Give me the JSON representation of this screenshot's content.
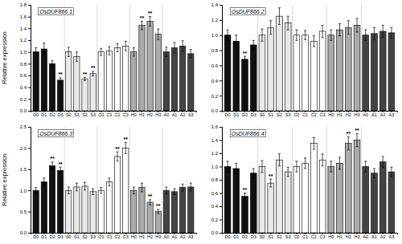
{
  "chart_data": [
    {
      "type": "bar",
      "title": "OsDUF866.1",
      "ylabel": "Relative expression",
      "categories": [
        "D0",
        "D1",
        "D2",
        "D3",
        "S0",
        "S1",
        "S2",
        "S3",
        "C0",
        "C1",
        "C2",
        "C3",
        "H0",
        "H1",
        "H2",
        "H3",
        "A0",
        "A1",
        "A2",
        "A3"
      ],
      "values": [
        1.0,
        1.05,
        0.8,
        0.52,
        1.0,
        0.92,
        0.54,
        0.63,
        1.0,
        1.02,
        1.07,
        1.1,
        1.0,
        1.45,
        1.52,
        1.3,
        1.0,
        1.07,
        1.1,
        0.97
      ],
      "errors": [
        0.07,
        0.1,
        0.05,
        0.04,
        0.08,
        0.08,
        0.03,
        0.04,
        0.06,
        0.07,
        0.07,
        0.08,
        0.07,
        0.07,
        0.08,
        0.09,
        0.08,
        0.09,
        0.09,
        0.07
      ],
      "colors": [
        "#111111",
        "#111111",
        "#111111",
        "#111111",
        "#e8e8e8",
        "#e8e8e8",
        "#e8e8e8",
        "#e8e8e8",
        "#ffffff",
        "#ffffff",
        "#ffffff",
        "#ffffff",
        "#aaaaaa",
        "#aaaaaa",
        "#aaaaaa",
        "#aaaaaa",
        "#444444",
        "#444444",
        "#444444",
        "#444444"
      ],
      "annotations": [
        {
          "category": "D3",
          "text": "**"
        },
        {
          "category": "S2",
          "text": "**"
        },
        {
          "category": "S3",
          "text": "**"
        },
        {
          "category": "H1",
          "text": "**"
        },
        {
          "category": "H2",
          "text": "**"
        }
      ],
      "ylim": [
        0,
        1.8
      ],
      "yticks": [
        {
          "value": 0,
          "label": "0.0"
        },
        0.2,
        0.4,
        0.6,
        0.8,
        {
          "value": 1.0,
          "label": "1.0"
        },
        1.2,
        1.4,
        1.6,
        1.8
      ],
      "grid": false
    },
    {
      "type": "bar",
      "title": "OsDUF866.2",
      "categories": [
        "D0",
        "D1",
        "D2",
        "D3",
        "S0",
        "S1",
        "S2",
        "S3",
        "C0",
        "C1",
        "C2",
        "C3",
        "H0",
        "H1",
        "H2",
        "H3",
        "A0",
        "A1",
        "A2",
        "A3"
      ],
      "values": [
        1.0,
        0.92,
        0.68,
        0.87,
        1.0,
        1.1,
        1.25,
        1.16,
        1.0,
        1.0,
        0.92,
        1.05,
        1.0,
        1.07,
        1.1,
        1.13,
        1.0,
        1.02,
        1.05,
        1.03
      ],
      "errors": [
        0.07,
        0.08,
        0.04,
        0.06,
        0.08,
        0.09,
        0.11,
        0.09,
        0.07,
        0.06,
        0.07,
        0.08,
        0.07,
        0.08,
        0.09,
        0.09,
        0.07,
        0.08,
        0.08,
        0.07
      ],
      "colors": [
        "#111111",
        "#111111",
        "#111111",
        "#111111",
        "#e8e8e8",
        "#e8e8e8",
        "#e8e8e8",
        "#e8e8e8",
        "#ffffff",
        "#ffffff",
        "#ffffff",
        "#ffffff",
        "#aaaaaa",
        "#aaaaaa",
        "#aaaaaa",
        "#aaaaaa",
        "#444444",
        "#444444",
        "#444444",
        "#444444"
      ],
      "annotations": [
        {
          "category": "D2",
          "text": "**"
        }
      ],
      "ylim": [
        0,
        1.4
      ],
      "yticks": [
        {
          "value": 0,
          "label": "0.0"
        },
        0.2,
        0.4,
        0.6,
        0.8,
        {
          "value": 1.0,
          "label": "1.0"
        },
        1.2,
        1.4
      ],
      "grid": false
    },
    {
      "type": "bar",
      "title": "OsDUF866.3",
      "ylabel": "Relative expression",
      "categories": [
        "D0",
        "D1",
        "D2",
        "D3",
        "S0",
        "S1",
        "S2",
        "S3",
        "C0",
        "C1",
        "C2",
        "C3",
        "H0",
        "H1",
        "H2",
        "H3",
        "A0",
        "A1",
        "A2",
        "A3"
      ],
      "values": [
        1.0,
        1.2,
        1.58,
        1.47,
        1.0,
        1.08,
        1.1,
        0.97,
        1.0,
        1.2,
        1.8,
        2.0,
        1.0,
        1.07,
        0.72,
        0.5,
        1.0,
        0.97,
        1.07,
        1.08
      ],
      "errors": [
        0.07,
        0.09,
        0.09,
        0.08,
        0.08,
        0.09,
        0.09,
        0.07,
        0.07,
        0.09,
        0.11,
        0.13,
        0.08,
        0.1,
        0.06,
        0.05,
        0.08,
        0.07,
        0.08,
        0.09
      ],
      "colors": [
        "#111111",
        "#111111",
        "#111111",
        "#111111",
        "#e8e8e8",
        "#e8e8e8",
        "#e8e8e8",
        "#e8e8e8",
        "#ffffff",
        "#ffffff",
        "#ffffff",
        "#ffffff",
        "#aaaaaa",
        "#aaaaaa",
        "#aaaaaa",
        "#aaaaaa",
        "#444444",
        "#444444",
        "#444444",
        "#444444"
      ],
      "annotations": [
        {
          "category": "D2",
          "text": "**"
        },
        {
          "category": "D3",
          "text": "**"
        },
        {
          "category": "C2",
          "text": "**"
        },
        {
          "category": "C3",
          "text": "**"
        },
        {
          "category": "H2",
          "text": "**"
        },
        {
          "category": "H3",
          "text": "**"
        }
      ],
      "ylim": [
        0,
        2.5
      ],
      "yticks": [
        {
          "value": 0,
          "label": "0.0"
        },
        0.5,
        {
          "value": 1.0,
          "label": "1.0"
        },
        1.5,
        {
          "value": 2.0,
          "label": "2.0"
        },
        2.5
      ],
      "grid": false
    },
    {
      "type": "bar",
      "title": "OsDUF866.4",
      "categories": [
        "D0",
        "D1",
        "D2",
        "D3",
        "S0",
        "S1",
        "S2",
        "S3",
        "C0",
        "C1",
        "C2",
        "C3",
        "H0",
        "H1",
        "H2",
        "H3",
        "A0",
        "A1",
        "A2",
        "A3"
      ],
      "values": [
        1.0,
        0.97,
        0.55,
        0.9,
        1.0,
        0.75,
        1.1,
        0.92,
        1.0,
        1.05,
        1.35,
        1.1,
        1.0,
        1.05,
        1.35,
        1.4,
        1.0,
        0.9,
        1.07,
        0.92
      ],
      "errors": [
        0.08,
        0.08,
        0.05,
        0.07,
        0.09,
        0.06,
        0.09,
        0.07,
        0.08,
        0.08,
        0.09,
        0.09,
        0.08,
        0.09,
        0.1,
        0.1,
        0.08,
        0.07,
        0.08,
        0.07
      ],
      "colors": [
        "#111111",
        "#111111",
        "#111111",
        "#111111",
        "#e8e8e8",
        "#e8e8e8",
        "#e8e8e8",
        "#e8e8e8",
        "#ffffff",
        "#ffffff",
        "#ffffff",
        "#ffffff",
        "#aaaaaa",
        "#aaaaaa",
        "#aaaaaa",
        "#aaaaaa",
        "#444444",
        "#444444",
        "#444444",
        "#444444"
      ],
      "annotations": [
        {
          "category": "D2",
          "text": "**"
        },
        {
          "category": "S1",
          "text": "**"
        },
        {
          "category": "H2",
          "text": "**"
        },
        {
          "category": "H3",
          "text": "**"
        }
      ],
      "ylim": [
        0,
        1.6
      ],
      "yticks": [
        {
          "value": 0,
          "label": "0.0"
        },
        0.2,
        0.4,
        0.6,
        0.8,
        {
          "value": 1.0,
          "label": "1.0"
        },
        1.2,
        1.4,
        1.6
      ],
      "grid": false
    }
  ]
}
